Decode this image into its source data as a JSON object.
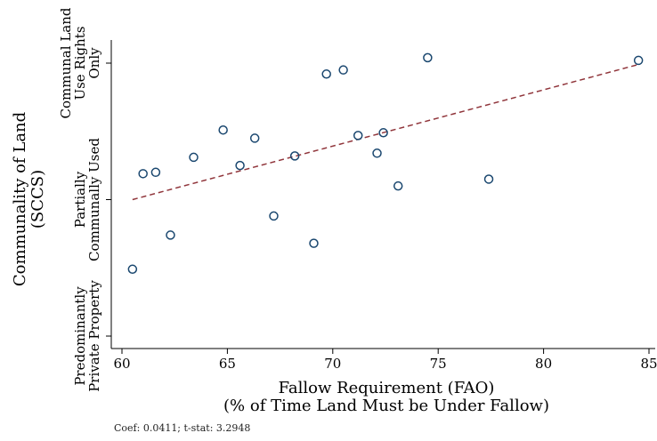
{
  "chart_data": {
    "type": "scatter",
    "xlabel_line1": "Fallow Requirement (FAO)",
    "xlabel_line2": "(% of Time Land Must be Under Fallow)",
    "ylabel_line1": "Communality of Land",
    "ylabel_line2": "(SCCS)",
    "xlim": [
      60,
      85
    ],
    "ylim": [
      0,
      2
    ],
    "x_ticks": [
      60,
      65,
      70,
      75,
      80,
      85
    ],
    "y_ticks": [
      {
        "value": 0,
        "lines": [
          "Predominantly",
          "Private Property"
        ]
      },
      {
        "value": 1,
        "lines": [
          "Partially",
          "Communally Used"
        ]
      },
      {
        "value": 2,
        "lines": [
          "Communal Land",
          "Use Rights",
          "Only"
        ]
      }
    ],
    "points": [
      {
        "x": 60.5,
        "y": 0.49
      },
      {
        "x": 61.0,
        "y": 1.19
      },
      {
        "x": 61.6,
        "y": 1.2
      },
      {
        "x": 62.3,
        "y": 0.74
      },
      {
        "x": 63.4,
        "y": 1.31
      },
      {
        "x": 64.8,
        "y": 1.51
      },
      {
        "x": 65.6,
        "y": 1.25
      },
      {
        "x": 66.3,
        "y": 1.45
      },
      {
        "x": 67.2,
        "y": 0.88
      },
      {
        "x": 68.2,
        "y": 1.32
      },
      {
        "x": 69.1,
        "y": 0.68
      },
      {
        "x": 69.7,
        "y": 1.92
      },
      {
        "x": 70.5,
        "y": 1.95
      },
      {
        "x": 71.2,
        "y": 1.47
      },
      {
        "x": 72.1,
        "y": 1.34
      },
      {
        "x": 72.4,
        "y": 1.49
      },
      {
        "x": 73.1,
        "y": 1.1
      },
      {
        "x": 74.5,
        "y": 2.04
      },
      {
        "x": 77.4,
        "y": 1.15
      },
      {
        "x": 84.5,
        "y": 2.02
      }
    ],
    "fit_line": {
      "x": [
        60.5,
        84.5
      ],
      "y": [
        1.0,
        1.99
      ]
    },
    "colors": {
      "marker": "#1a476f",
      "fit": "#90353b",
      "axis": "#000000"
    }
  },
  "footnote": "Coef: 0.0411; t-stat: 3.2948"
}
